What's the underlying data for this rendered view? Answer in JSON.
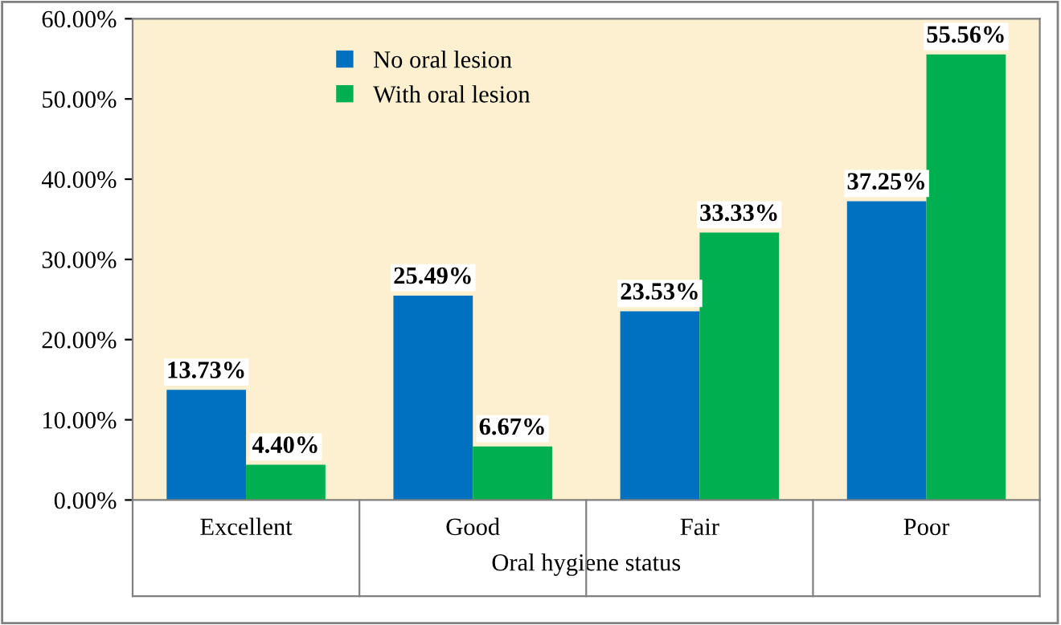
{
  "chart_data": {
    "type": "bar",
    "xlabel": "Oral hygiene status",
    "categories": [
      "Excellent",
      "Good",
      "Fair",
      "Poor"
    ],
    "series": [
      {
        "name": "No oral lesion",
        "color": "#0070c0",
        "values": [
          13.73,
          25.49,
          23.53,
          37.25
        ],
        "value_labels": [
          "13.73%",
          "25.49%",
          "23.53%",
          "37.25%"
        ]
      },
      {
        "name": "With oral lesion",
        "color": "#00b050",
        "values": [
          4.4,
          6.67,
          33.33,
          55.56
        ],
        "value_labels": [
          "4.40%",
          "6.67%",
          "33.33%",
          "55.56%"
        ]
      }
    ],
    "ylim": [
      0,
      60
    ],
    "yticks": [
      {
        "value": 0,
        "label": "0.00%"
      },
      {
        "value": 10,
        "label": "10.00%"
      },
      {
        "value": 20,
        "label": "20.00%"
      },
      {
        "value": 30,
        "label": "30.00%"
      },
      {
        "value": 40,
        "label": "40.00%"
      },
      {
        "value": 50,
        "label": "50.00%"
      },
      {
        "value": 60,
        "label": "60.00%"
      }
    ],
    "grid": false,
    "legend": "top left"
  }
}
